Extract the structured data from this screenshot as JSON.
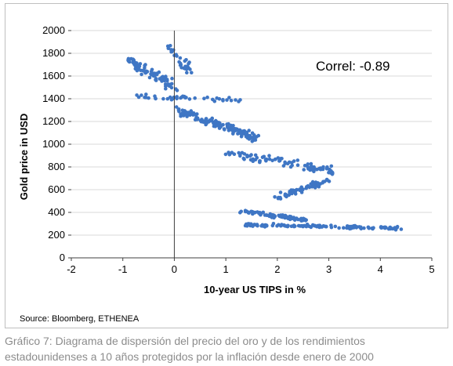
{
  "caption": "Gráfico 7: Diagrama de dispersión del precio del oro y de los rendimientos estadounidenses a 10 años protegidos por la inflación desde enero de 2000",
  "source": "Source: Bloomberg, ETHENEA",
  "colors": {
    "point": "#3f76c4",
    "grid": "#d9d9d9",
    "axis": "#404040"
  },
  "chart_data": {
    "type": "scatter",
    "xlabel": "10-year US TIPS in %",
    "ylabel": "Gold price in USD",
    "annotation": "Correl: -0.89",
    "xlim": [
      -2,
      5
    ],
    "ylim": [
      0,
      2000
    ],
    "xticks": [
      "-2",
      "-1",
      "0",
      "1",
      "2",
      "3",
      "4",
      "5"
    ],
    "yticks": [
      "0",
      "200",
      "400",
      "600",
      "800",
      "1000",
      "1200",
      "1400",
      "1600",
      "1800",
      "2000"
    ],
    "grid": "horizontal",
    "legend": "none",
    "clusters": [
      {
        "x0": 1.4,
        "x1": 4.4,
        "y0": 290,
        "y1": 260,
        "spread_x": 0.08,
        "spread_y": 18,
        "n": 130
      },
      {
        "x0": 1.3,
        "x1": 2.6,
        "y0": 410,
        "y1": 330,
        "spread_x": 0.08,
        "spread_y": 25,
        "n": 70
      },
      {
        "x0": 2.0,
        "x1": 3.0,
        "y0": 540,
        "y1": 680,
        "spread_x": 0.08,
        "spread_y": 40,
        "n": 60
      },
      {
        "x0": 1.0,
        "x1": 3.1,
        "y0": 930,
        "y1": 760,
        "spread_x": 0.1,
        "spread_y": 55,
        "n": 90
      },
      {
        "x0": 0.0,
        "x1": 1.6,
        "y0": 1310,
        "y1": 1050,
        "spread_x": 0.1,
        "spread_y": 60,
        "n": 140
      },
      {
        "x0": -0.9,
        "x1": 0.0,
        "y0": 1750,
        "y1": 1500,
        "spread_x": 0.12,
        "spread_y": 70,
        "n": 80
      },
      {
        "x0": -0.1,
        "x1": 0.3,
        "y0": 1850,
        "y1": 1650,
        "spread_x": 0.08,
        "spread_y": 60,
        "n": 30
      },
      {
        "x0": -0.7,
        "x1": 1.3,
        "y0": 1420,
        "y1": 1390,
        "spread_x": 0.1,
        "spread_y": 30,
        "n": 40
      }
    ]
  }
}
